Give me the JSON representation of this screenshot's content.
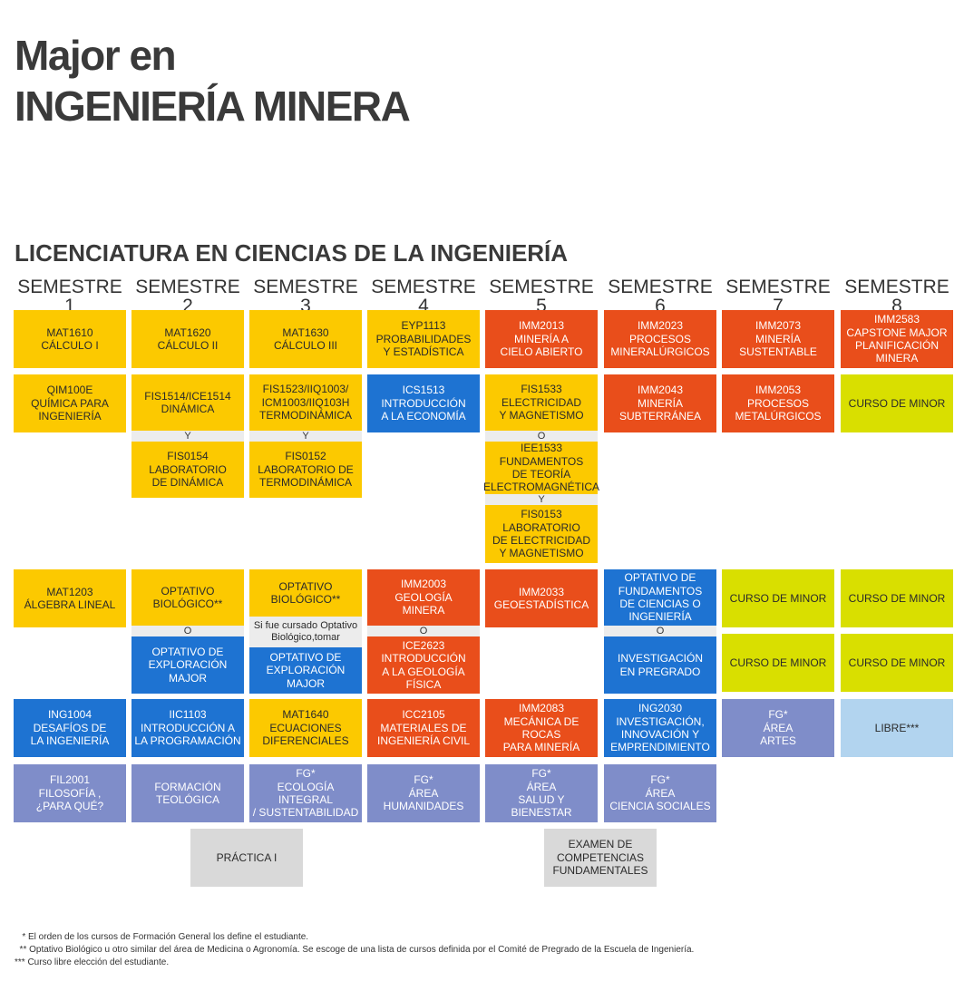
{
  "title": {
    "line1": "Major en",
    "line2": "INGENIERÍA MINERA"
  },
  "section_title": "LICENCIATURA EN CIENCIAS DE LA INGENIERÍA",
  "semesters": [
    "SEMESTRE 1",
    "SEMESTRE 2",
    "SEMESTRE 3",
    "SEMESTRE 4",
    "SEMESTRE 5",
    "SEMESTRE 6",
    "SEMESTRE 7",
    "SEMESTRE 8"
  ],
  "colors": {
    "yellow": "#fcc900",
    "orange": "#e94e1b",
    "blue": "#1e73d2",
    "lime": "#d9df00",
    "purple": "#7f8dc9",
    "light_blue": "#b2d4ef",
    "gray": "#d9d9d9"
  },
  "courses": {
    "s1": {
      "mat1610": "MAT1610\nCÁLCULO I",
      "qim100e": "QIM100E\nQUÍMICA PARA\nINGENIERÍA",
      "mat1203": "MAT1203\nÁLGEBRA LINEAL",
      "ing1004": "ING1004\nDESAFÍOS DE\nLA INGENIERÍA",
      "fil2001": "FIL2001\nFILOSOFÍA ,\n¿PARA QUÉ?"
    },
    "s2": {
      "mat1620": "MAT1620\nCÁLCULO II",
      "fis1514": "FIS1514/ICE1514\nDINÁMICA",
      "y1": "Y",
      "fis0154": "FIS0154\nLABORATORIO\nDE DINÁMICA",
      "optbio": "OPTATIVO\nBIOLÓGICO**",
      "o1": "O",
      "optexp": "OPTATIVO DE\nEXPLORACIÓN\nMAJOR",
      "iic1103": "IIC1103\nINTRODUCCIÓN A\nLA PROGRAMACIÓN",
      "teol": "FORMACIÓN\nTEOLÓGICA"
    },
    "s3": {
      "mat1630": "MAT1630\nCÁLCULO III",
      "fis1523": "FIS1523/IIQ1003/\nICM1003/IIQ103H\nTERMODINÁMICA",
      "y1": "Y",
      "fis0152": "FIS0152\nLABORATORIO DE\nTERMODINÁMICA",
      "optbio": "OPTATIVO\nBIOLÓGICO**",
      "note": "Si fue cursado Optativo\nBiológico,tomar",
      "optexp": "OPTATIVO DE\nEXPLORACIÓN\nMAJOR",
      "mat1640": "MAT1640\nECUACIONES\nDIFERENCIALES",
      "fg": "FG*\nECOLOGÍA INTEGRAL\n/ SUSTENTABILIDAD"
    },
    "s4": {
      "eyp1113": "EYP1113\nPROBABILIDADES\nY ESTADÍSTICA",
      "ics1513": "ICS1513\nINTRODUCCIÓN\nA LA ECONOMÍA",
      "imm2003": "IMM2003\nGEOLOGÍA\nMINERA",
      "o1": "O",
      "ice2623": "ICE2623\nINTRODUCCIÓN\nA LA GEOLOGÍA\nFÍSICA",
      "icc2105": "ICC2105\nMATERIALES DE\nINGENIERÍA CIVIL",
      "fg": "FG*\nÁREA\nHUMANIDADES"
    },
    "s5": {
      "imm2013": "IMM2013\nMINERÍA A\nCIELO ABIERTO",
      "fis1533": "FIS1533\nELECTRICIDAD\nY MAGNETISMO",
      "o1": "O",
      "iee1533": "IEE1533\nFUNDAMENTOS\nDE TEORÍA\nELECTROMAGNÉTICA",
      "y1": "Y",
      "fis0153": "FIS0153\nLABORATORIO\nDE ELECTRICIDAD\nY MAGNETISMO",
      "imm2033": "IMM2033\nGEOESTADÍSTICA",
      "imm2083": "IMM2083\nMECÁNICA DE ROCAS\nPARA MINERÍA",
      "fg": "FG*\nÁREA\nSALUD Y BIENESTAR"
    },
    "s6": {
      "imm2023": "IMM2023\nPROCESOS\nMINERALÚRGICOS",
      "imm2043": "IMM2043\nMINERÍA\nSUBTERRÁNEA",
      "optfund": "OPTATIVO DE\nFUNDAMENTOS\nDE CIENCIAS O\nINGENIERÍA",
      "o1": "O",
      "invest": "INVESTIGACIÓN\nEN PREGRADO",
      "ing2030": "ING2030\nINVESTIGACIÓN,\nINNOVACIÓN Y\nEMPRENDIMIENTO",
      "fg": "FG*\nÁREA\nCIENCIA SOCIALES"
    },
    "s7": {
      "imm2073": "IMM2073\nMINERÍA\nSUSTENTABLE",
      "imm2053": "IMM2053\nPROCESOS\nMETALÚRGICOS",
      "minor1": "CURSO DE MINOR",
      "minor2": "CURSO DE MINOR",
      "fg": "FG*\nÁREA\nARTES"
    },
    "s8": {
      "imm2583": "IMM2583\nCAPSTONE MAJOR\nPLANIFICACIÓN\nMINERA",
      "minor1": "CURSO DE MINOR",
      "minor2": "CURSO DE MINOR",
      "minor3": "CURSO DE MINOR",
      "libre": "LIBRE***"
    },
    "practica": "PRÁCTICA I",
    "examen": "EXAMEN DE\nCOMPETENCIAS\nFUNDAMENTALES"
  },
  "footnotes": [
    "   * El orden de los cursos de Formación General los define el estudiante.",
    "  ** Optativo Biológico u otro similar del área de Medicina o Agronomía. Se escoge de una lista de cursos definida por el Comité de Pregrado de la Escuela de Ingeniería.",
    "*** Curso libre elección del estudiante."
  ]
}
